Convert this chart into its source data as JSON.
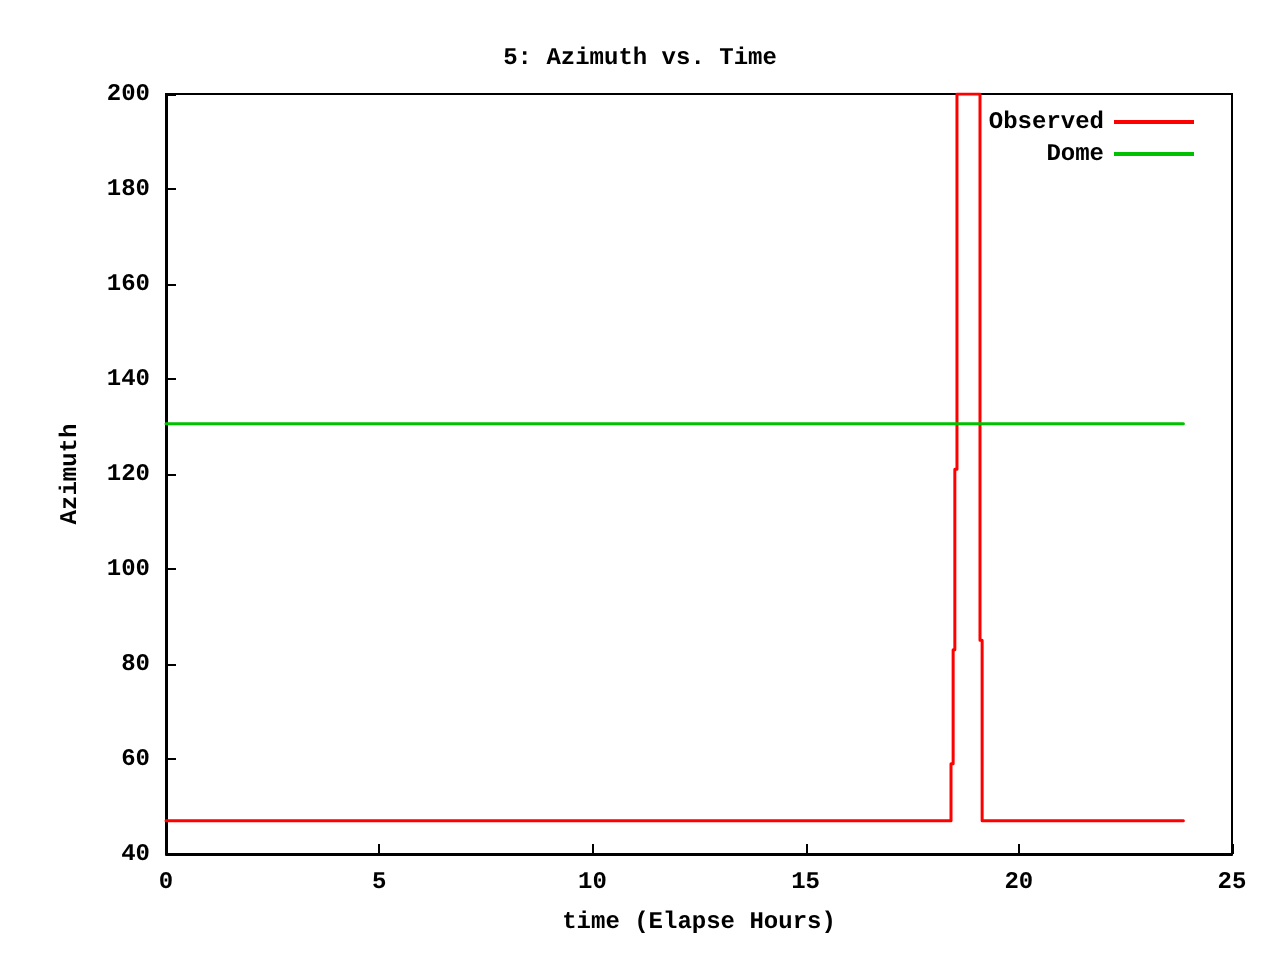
{
  "chart_data": {
    "type": "line",
    "title": "5: Azimuth vs. Time",
    "xlabel": "time (Elapse Hours)",
    "ylabel": "Azimuth",
    "xlim": [
      0,
      25
    ],
    "xticks": [
      0,
      5,
      10,
      15,
      20,
      25
    ],
    "ylim": [
      40,
      200
    ],
    "yticks": [
      40,
      60,
      80,
      100,
      120,
      140,
      160,
      180,
      200
    ],
    "grid": false,
    "legend": "top right",
    "marker": "none",
    "line_style": "solid",
    "series": [
      {
        "name": "Observed",
        "color": "#ff0000",
        "x": [
          0,
          18.41,
          18.41,
          18.46,
          18.46,
          18.5,
          18.5,
          18.55,
          18.55,
          19.09,
          19.09,
          19.14,
          19.14,
          23.86
        ],
        "values": [
          47,
          47,
          59,
          59,
          83,
          83,
          121,
          121,
          200,
          200,
          85,
          85,
          47,
          47
        ]
      },
      {
        "name": "Dome",
        "color": "#00c000",
        "x": [
          0,
          23.86
        ],
        "values": [
          130.6,
          130.6
        ]
      }
    ]
  }
}
